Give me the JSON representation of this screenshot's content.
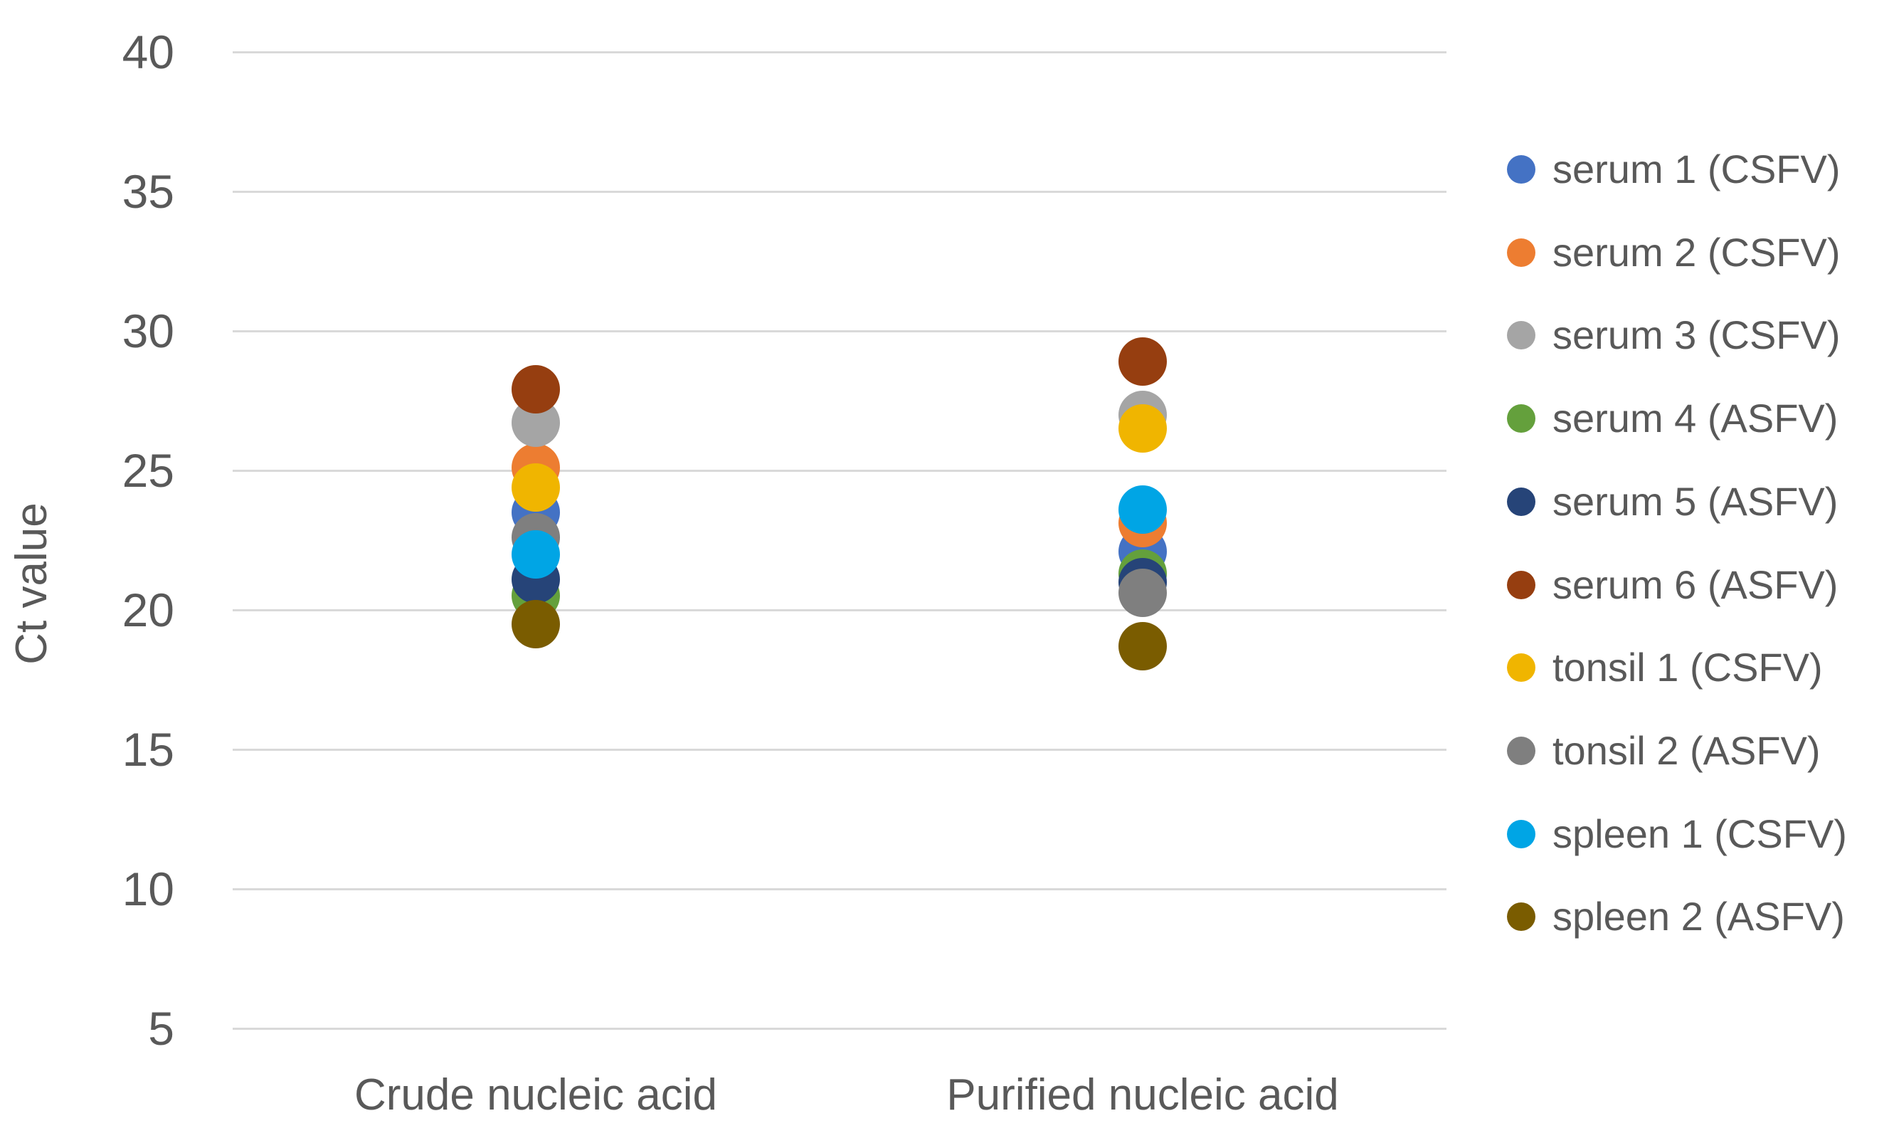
{
  "chart_data": {
    "type": "scatter",
    "ylabel": "Ct value",
    "categories": [
      "Crude nucleic acid",
      "Purified nucleic acid"
    ],
    "y_axis": {
      "min": 5,
      "max": 40,
      "tick_step": 5,
      "ticks": [
        40,
        35,
        30,
        25,
        20,
        15,
        10,
        5
      ]
    },
    "grid": true,
    "legend_position": "right",
    "series": [
      {
        "name": "serum 1 (CSFV)",
        "color": "#4472C4",
        "values": [
          23.5,
          22.1
        ]
      },
      {
        "name": "serum 2 (CSFV)",
        "color": "#ED7D31",
        "values": [
          25.1,
          23.1
        ]
      },
      {
        "name": "serum 3 (CSFV)",
        "color": "#A5A5A5",
        "values": [
          26.7,
          27.0
        ]
      },
      {
        "name": "serum 4 (ASFV)",
        "color": "#64A03C",
        "values": [
          20.5,
          21.3
        ]
      },
      {
        "name": "serum 5 (ASFV)",
        "color": "#264478",
        "values": [
          21.1,
          21.0
        ]
      },
      {
        "name": "serum 6 (ASFV)",
        "color": "#963E10",
        "values": [
          27.9,
          28.9
        ]
      },
      {
        "name": "tonsil 1 (CSFV)",
        "color": "#F0B500",
        "values": [
          24.4,
          26.5
        ]
      },
      {
        "name": "tonsil 2 (ASFV)",
        "color": "#7F7F7F",
        "values": [
          22.6,
          20.6
        ]
      },
      {
        "name": "spleen 1 (CSFV)",
        "color": "#00A5E5",
        "values": [
          22.0,
          23.6
        ]
      },
      {
        "name": "spleen 2 (ASFV)",
        "color": "#7A5C00",
        "values": [
          19.5,
          18.7
        ]
      }
    ],
    "colors": {
      "gridline": "#D9D9D9",
      "text": "#595959",
      "background": "#FFFFFF"
    }
  }
}
